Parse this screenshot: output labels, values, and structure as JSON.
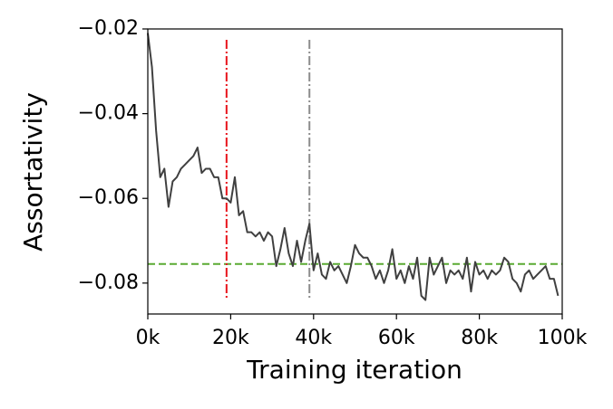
{
  "chart_data": {
    "type": "line",
    "x_label": "Training iteration",
    "y_label": "Assortativity",
    "x": [
      0,
      1000,
      2000,
      3000,
      4000,
      5000,
      6000,
      7000,
      8000,
      9000,
      10000,
      11000,
      12000,
      13000,
      14000,
      15000,
      16000,
      17000,
      18000,
      19000,
      20000,
      21000,
      22000,
      23000,
      24000,
      25000,
      26000,
      27000,
      28000,
      29000,
      30000,
      31000,
      32000,
      33000,
      34000,
      35000,
      36000,
      37000,
      38000,
      39000,
      40000,
      41000,
      42000,
      43000,
      44000,
      45000,
      46000,
      47000,
      48000,
      49000,
      50000,
      51000,
      52000,
      53000,
      54000,
      55000,
      56000,
      57000,
      58000,
      59000,
      60000,
      61000,
      62000,
      63000,
      64000,
      65000,
      66000,
      67000,
      68000,
      69000,
      70000,
      71000,
      72000,
      73000,
      74000,
      75000,
      76000,
      77000,
      78000,
      79000,
      80000,
      81000,
      82000,
      83000,
      84000,
      85000,
      86000,
      87000,
      88000,
      89000,
      90000,
      91000,
      92000,
      93000,
      94000,
      95000,
      96000,
      97000,
      98000,
      99000
    ],
    "series": [
      {
        "color": "#404040",
        "values": [
          -0.021,
          -0.029,
          -0.044,
          -0.055,
          -0.053,
          -0.062,
          -0.056,
          -0.055,
          -0.053,
          -0.052,
          -0.051,
          -0.05,
          -0.048,
          -0.054,
          -0.053,
          -0.053,
          -0.055,
          -0.055,
          -0.06,
          -0.06,
          -0.061,
          -0.055,
          -0.064,
          -0.063,
          -0.068,
          -0.068,
          -0.069,
          -0.068,
          -0.07,
          -0.068,
          -0.069,
          -0.076,
          -0.072,
          -0.067,
          -0.073,
          -0.076,
          -0.07,
          -0.075,
          -0.07,
          -0.066,
          -0.077,
          -0.073,
          -0.078,
          -0.079,
          -0.075,
          -0.077,
          -0.076,
          -0.078,
          -0.08,
          -0.076,
          -0.071,
          -0.073,
          -0.074,
          -0.074,
          -0.076,
          -0.079,
          -0.077,
          -0.08,
          -0.077,
          -0.072,
          -0.079,
          -0.077,
          -0.08,
          -0.076,
          -0.079,
          -0.074,
          -0.083,
          -0.084,
          -0.074,
          -0.078,
          -0.076,
          -0.074,
          -0.08,
          -0.077,
          -0.078,
          -0.077,
          -0.079,
          -0.074,
          -0.082,
          -0.075,
          -0.078,
          -0.077,
          -0.079,
          -0.077,
          -0.078,
          -0.077,
          -0.074,
          -0.075,
          -0.079,
          -0.08,
          -0.082,
          -0.078,
          -0.077,
          -0.079,
          -0.078,
          -0.077,
          -0.076,
          -0.079,
          -0.079,
          -0.083
        ]
      }
    ],
    "vlines": [
      {
        "x": 19000,
        "color": "#e8141c"
      },
      {
        "x": 39000,
        "color": "#8c8c8c"
      }
    ],
    "hline": {
      "y": -0.0755,
      "color": "#5aaa32"
    },
    "xlim": [
      0,
      100000
    ],
    "xticks": [
      {
        "value": 0,
        "label": "0k"
      },
      {
        "value": 20000,
        "label": "20k"
      },
      {
        "value": 40000,
        "label": "40k"
      },
      {
        "value": 60000,
        "label": "60k"
      },
      {
        "value": 80000,
        "label": "80k"
      },
      {
        "value": 100000,
        "label": "100k"
      }
    ],
    "ylim": [
      -0.0873,
      -0.02
    ],
    "yticks": [
      {
        "value": -0.02,
        "label": "−0.02"
      },
      {
        "value": -0.04,
        "label": "−0.04"
      },
      {
        "value": -0.06,
        "label": "−0.06"
      },
      {
        "value": -0.08,
        "label": "−0.08"
      }
    ]
  }
}
